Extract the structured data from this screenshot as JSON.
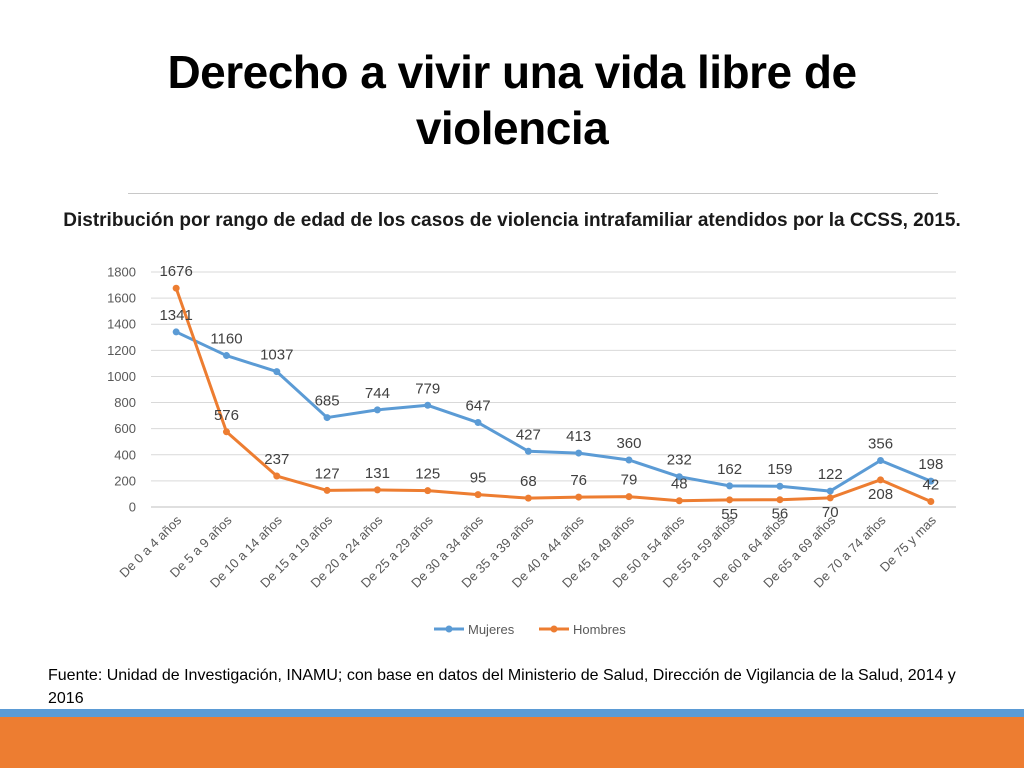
{
  "slide": {
    "title": "Derecho a vivir una vida libre de violencia",
    "source_note": "Fuente: Unidad de Investigación, INAMU; con base en datos del Ministerio de Salud, Dirección de Vigilancia de la Salud, 2014 y 2016"
  },
  "colors": {
    "mujeres": "#5b9bd5",
    "hombres": "#ed7d31",
    "band_blue": "#5b9bd5",
    "band_orange": "#ed7d31"
  },
  "chart_data": {
    "type": "line",
    "title": "Distribución por rango de edad de los casos de violencia intrafamiliar atendidos por la CCSS, 2015.",
    "xlabel": "",
    "ylabel": "",
    "ylim": [
      0,
      1800
    ],
    "yticks": [
      0,
      200,
      400,
      600,
      800,
      1000,
      1200,
      1400,
      1600,
      1800
    ],
    "grid": true,
    "legend_position": "bottom",
    "categories": [
      "De 0 a 4 años",
      "De 5 a 9 años",
      "De 10 a 14 años",
      "De 15 a 19 años",
      "De 20 a 24 años",
      "De 25 a 29 años",
      "De 30 a 34 años",
      "De 35 a 39 años",
      "De 40 a 44 años",
      "De 45 a 49 años",
      "De 50 a 54 años",
      "De 55 a 59 años",
      "De 60 a 64 años",
      "De 65 a 69 años",
      "De 70 a 74 años",
      "De 75 y mas"
    ],
    "series": [
      {
        "name": "Mujeres",
        "values": [
          1341,
          1160,
          1037,
          685,
          744,
          779,
          647,
          427,
          413,
          360,
          232,
          162,
          159,
          122,
          356,
          198
        ]
      },
      {
        "name": "Hombres",
        "values": [
          1676,
          576,
          237,
          127,
          131,
          125,
          95,
          68,
          76,
          79,
          48,
          55,
          56,
          70,
          208,
          42
        ]
      }
    ]
  }
}
